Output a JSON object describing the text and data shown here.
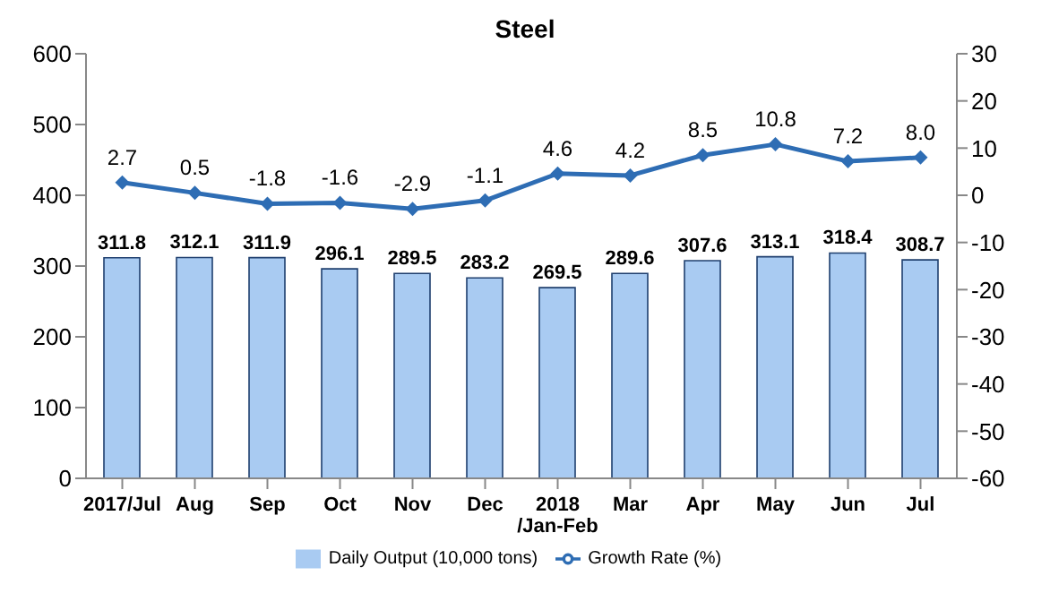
{
  "chart_data": {
    "type": "bar",
    "title": "Steel",
    "categories": [
      "2017/Jul",
      "Aug",
      "Sep",
      "Oct",
      "Nov",
      "Dec",
      "2018\n/Jan-Feb",
      "Mar",
      "Apr",
      "May",
      "Jun",
      "Jul"
    ],
    "series": [
      {
        "name": "Daily Output (10,000 tons)",
        "color": "#a9cbf2",
        "values": [
          311.8,
          312.1,
          311.9,
          296.1,
          289.5,
          283.2,
          269.5,
          289.6,
          307.6,
          313.1,
          318.4,
          308.7
        ]
      },
      {
        "name": "Growth Rate (%)",
        "type": "line",
        "axis": "y2",
        "color": "#2e6db4",
        "values": [
          2.7,
          0.5,
          -1.8,
          -1.6,
          -2.9,
          -1.1,
          4.6,
          4.2,
          8.5,
          10.8,
          7.2,
          8.0
        ],
        "value_labels": [
          "2.7",
          "0.5",
          "-1.8",
          "-1.6",
          "-2.9",
          "-1.1",
          "4.6",
          "4.2",
          "8.5",
          "10.8",
          "7.2",
          "8.0"
        ]
      }
    ],
    "ylim": [
      0,
      600
    ],
    "yticks": [
      0,
      100,
      200,
      300,
      400,
      500,
      600
    ],
    "y2lim": [
      -60,
      30
    ],
    "y2ticks": [
      -60,
      -50,
      -40,
      -30,
      -20,
      -10,
      0,
      10,
      20,
      30
    ],
    "data_labels": true,
    "legend": "bottom",
    "marker": "diamond",
    "line_style": "solid",
    "grid": false
  }
}
